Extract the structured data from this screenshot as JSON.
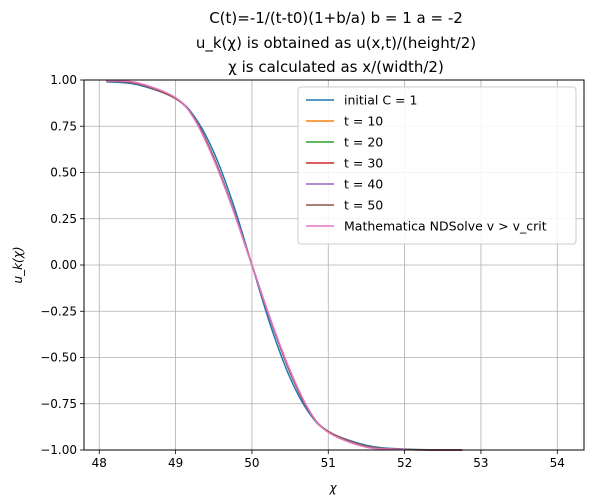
{
  "chart_data": {
    "type": "line",
    "title_lines": [
      "C(t)=-1/(t-t0)(1+b/a) b = 1 a = -2",
      "u_k(χ) is obtained as u(x,t)/(height/2)",
      "χ is calculated as x/(width/2)"
    ],
    "xlabel": "χ",
    "ylabel": "u_k(χ)",
    "xlim": [
      47.8,
      54.35
    ],
    "ylim": [
      -1.0,
      1.0
    ],
    "xticks": [
      48,
      49,
      50,
      51,
      52,
      53,
      54
    ],
    "xtick_labels": [
      "48",
      "49",
      "50",
      "51",
      "52",
      "53",
      "54"
    ],
    "yticks": [
      -1.0,
      -0.75,
      -0.5,
      -0.25,
      0.0,
      0.25,
      0.5,
      0.75,
      1.0
    ],
    "ytick_labels": [
      "−1.00",
      "−0.75",
      "−0.50",
      "−0.25",
      "0.00",
      "0.25",
      "0.50",
      "0.75",
      "1.00"
    ],
    "grid": true,
    "legend_position": "upper right",
    "series": [
      {
        "name": "initial C = 1",
        "color": "#1f77b4",
        "x": [
          48.1,
          48.5,
          49.0,
          49.25,
          49.5,
          49.75,
          50.0,
          50.25,
          50.5,
          50.75,
          51.0,
          51.5,
          52.0,
          52.75
        ],
        "y": [
          0.99,
          0.975,
          0.9,
          0.8,
          0.61,
          0.335,
          0.0,
          -0.335,
          -0.61,
          -0.8,
          -0.9,
          -0.975,
          -0.995,
          -1.0
        ]
      },
      {
        "name": "t = 10",
        "color": "#ff7f0e",
        "x": [
          48.1,
          48.5,
          49.0,
          49.25,
          49.5,
          49.75,
          50.0,
          50.25,
          50.5,
          50.75,
          51.0,
          51.5,
          52.0,
          52.75
        ],
        "y": [
          0.995,
          0.98,
          0.9,
          0.79,
          0.58,
          0.305,
          0.0,
          -0.305,
          -0.58,
          -0.79,
          -0.9,
          -0.98,
          -0.997,
          -1.0
        ]
      },
      {
        "name": "t = 20",
        "color": "#2ca02c",
        "x": [
          48.1,
          48.5,
          49.0,
          49.25,
          49.5,
          49.75,
          50.0,
          50.25,
          50.5,
          50.75,
          51.0,
          51.5,
          52.0,
          52.75
        ],
        "y": [
          0.995,
          0.98,
          0.9,
          0.79,
          0.58,
          0.305,
          0.0,
          -0.305,
          -0.58,
          -0.79,
          -0.9,
          -0.98,
          -0.997,
          -1.0
        ]
      },
      {
        "name": "t = 30",
        "color": "#d62728",
        "x": [
          48.1,
          48.5,
          49.0,
          49.25,
          49.5,
          49.75,
          50.0,
          50.25,
          50.5,
          50.75,
          51.0,
          51.5,
          52.0,
          52.75
        ],
        "y": [
          0.995,
          0.98,
          0.9,
          0.79,
          0.58,
          0.305,
          0.0,
          -0.305,
          -0.58,
          -0.79,
          -0.9,
          -0.98,
          -0.997,
          -1.0
        ]
      },
      {
        "name": "t = 40",
        "color": "#9467bd",
        "x": [
          48.1,
          48.5,
          49.0,
          49.25,
          49.5,
          49.75,
          50.0,
          50.25,
          50.5,
          50.75,
          51.0,
          51.5,
          52.0,
          52.75
        ],
        "y": [
          0.995,
          0.98,
          0.9,
          0.79,
          0.58,
          0.305,
          0.0,
          -0.305,
          -0.58,
          -0.79,
          -0.9,
          -0.98,
          -0.997,
          -1.0
        ]
      },
      {
        "name": "t = 50",
        "color": "#8c564b",
        "x": [
          48.1,
          48.5,
          49.0,
          49.25,
          49.5,
          49.75,
          50.0,
          50.25,
          50.5,
          50.75,
          51.0,
          51.5,
          52.0,
          52.75
        ],
        "y": [
          0.995,
          0.98,
          0.9,
          0.79,
          0.58,
          0.305,
          0.0,
          -0.305,
          -0.58,
          -0.79,
          -0.9,
          -0.98,
          -0.997,
          -1.0
        ]
      },
      {
        "name": "Mathematica NDSolve v > v_crit",
        "color": "#e377c2",
        "x": [
          48.1,
          48.5,
          49.0,
          49.25,
          49.5,
          49.75,
          50.0,
          50.25,
          50.5,
          50.75,
          51.0,
          51.5,
          52.0
        ],
        "y": [
          0.995,
          0.985,
          0.905,
          0.785,
          0.57,
          0.3,
          0.0,
          -0.3,
          -0.57,
          -0.785,
          -0.905,
          -0.985,
          -0.997
        ]
      }
    ]
  }
}
